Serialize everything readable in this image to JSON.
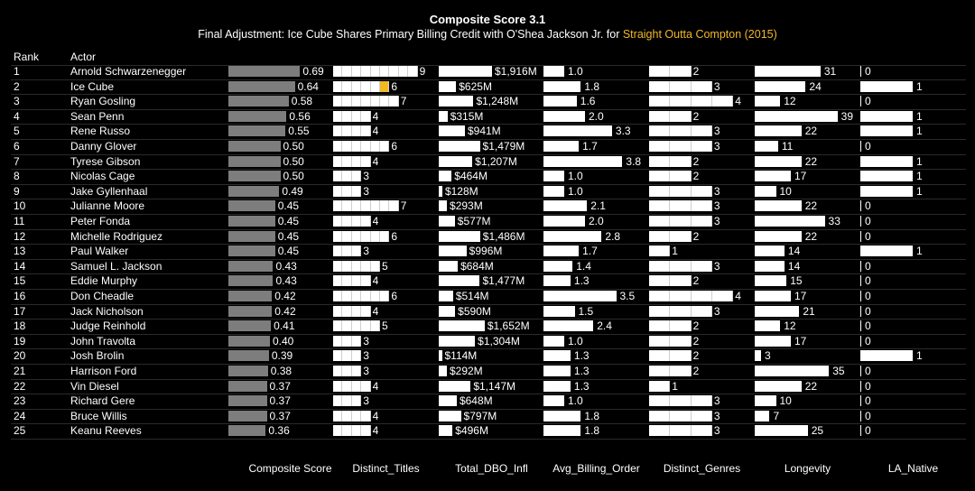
{
  "title": "Composite Score 3.1",
  "subtitle_prefix": "Final Adjustment: Ice Cube Shares Primary Billing Credit with O'Shea Jackson Jr. for ",
  "subtitle_highlight": "Straight Outta Compton (2015)",
  "colors": {
    "highlight": "#f2b826",
    "composite": "#7d7d7d",
    "bar": "#ffffff",
    "background": "#000000"
  },
  "chart_data": {
    "type": "table",
    "headers": {
      "rank": "Rank",
      "actor": "Actor"
    },
    "columns": [
      "Composite Score",
      "Distinct_Titles",
      "Total_DBO_Infl",
      "Avg_Billing_Order",
      "Distinct_Genres",
      "Longevity",
      "LA_Native"
    ],
    "highlight": {
      "actor": "Ice Cube",
      "column": "Distinct_Titles",
      "segment": 6
    },
    "rows": [
      {
        "rank": "1",
        "actor": "Arnold Schwarzenegger",
        "score": 0.69,
        "titles": 9,
        "dbo": 1916,
        "billing": 1.0,
        "genres": 2,
        "longevity": 31,
        "la": 0
      },
      {
        "rank": "2",
        "actor": "Ice Cube",
        "score": 0.64,
        "titles": 6,
        "dbo": 625,
        "billing": 1.8,
        "genres": 3,
        "longevity": 24,
        "la": 1
      },
      {
        "rank": "3",
        "actor": "Ryan Gosling",
        "score": 0.58,
        "titles": 7,
        "dbo": 1248,
        "billing": 1.6,
        "genres": 4,
        "longevity": 12,
        "la": 0
      },
      {
        "rank": "4",
        "actor": "Sean Penn",
        "score": 0.56,
        "titles": 4,
        "dbo": 315,
        "billing": 2.0,
        "genres": 2,
        "longevity": 39,
        "la": 1
      },
      {
        "rank": "5",
        "actor": "Rene Russo",
        "score": 0.55,
        "titles": 4,
        "dbo": 941,
        "billing": 3.3,
        "genres": 3,
        "longevity": 22,
        "la": 1
      },
      {
        "rank": "6",
        "actor": "Danny Glover",
        "score": 0.5,
        "titles": 6,
        "dbo": 1479,
        "billing": 1.7,
        "genres": 3,
        "longevity": 11,
        "la": 0
      },
      {
        "rank": "7",
        "actor": "Tyrese Gibson",
        "score": 0.5,
        "titles": 4,
        "dbo": 1207,
        "billing": 3.8,
        "genres": 2,
        "longevity": 22,
        "la": 1
      },
      {
        "rank": "8",
        "actor": "Nicolas Cage",
        "score": 0.5,
        "titles": 3,
        "dbo": 464,
        "billing": 1.0,
        "genres": 2,
        "longevity": 17,
        "la": 1
      },
      {
        "rank": "9",
        "actor": "Jake Gyllenhaal",
        "score": 0.49,
        "titles": 3,
        "dbo": 128,
        "billing": 1.0,
        "genres": 3,
        "longevity": 10,
        "la": 1
      },
      {
        "rank": "10",
        "actor": "Julianne Moore",
        "score": 0.45,
        "titles": 7,
        "dbo": 293,
        "billing": 2.1,
        "genres": 3,
        "longevity": 22,
        "la": 0
      },
      {
        "rank": "11",
        "actor": "Peter Fonda",
        "score": 0.45,
        "titles": 4,
        "dbo": 577,
        "billing": 2.0,
        "genres": 3,
        "longevity": 33,
        "la": 0
      },
      {
        "rank": "12",
        "actor": "Michelle Rodriguez",
        "score": 0.45,
        "titles": 6,
        "dbo": 1486,
        "billing": 2.8,
        "genres": 2,
        "longevity": 22,
        "la": 0
      },
      {
        "rank": "13",
        "actor": "Paul Walker",
        "score": 0.45,
        "titles": 3,
        "dbo": 996,
        "billing": 1.7,
        "genres": 1,
        "longevity": 14,
        "la": 1
      },
      {
        "rank": "14",
        "actor": "Samuel L. Jackson",
        "score": 0.43,
        "titles": 5,
        "dbo": 684,
        "billing": 1.4,
        "genres": 3,
        "longevity": 14,
        "la": 0
      },
      {
        "rank": "15",
        "actor": "Eddie Murphy",
        "score": 0.43,
        "titles": 4,
        "dbo": 1477,
        "billing": 1.3,
        "genres": 2,
        "longevity": 15,
        "la": 0
      },
      {
        "rank": "16",
        "actor": "Don Cheadle",
        "score": 0.42,
        "titles": 6,
        "dbo": 514,
        "billing": 3.5,
        "genres": 4,
        "longevity": 17,
        "la": 0
      },
      {
        "rank": "17",
        "actor": "Jack Nicholson",
        "score": 0.42,
        "titles": 4,
        "dbo": 590,
        "billing": 1.5,
        "genres": 3,
        "longevity": 21,
        "la": 0
      },
      {
        "rank": "18",
        "actor": "Judge Reinhold",
        "score": 0.41,
        "titles": 5,
        "dbo": 1652,
        "billing": 2.4,
        "genres": 2,
        "longevity": 12,
        "la": 0
      },
      {
        "rank": "19",
        "actor": "John Travolta",
        "score": 0.4,
        "titles": 3,
        "dbo": 1304,
        "billing": 1.0,
        "genres": 2,
        "longevity": 17,
        "la": 0
      },
      {
        "rank": "20",
        "actor": "Josh Brolin",
        "score": 0.39,
        "titles": 3,
        "dbo": 114,
        "billing": 1.3,
        "genres": 2,
        "longevity": 3,
        "la": 1
      },
      {
        "rank": "21",
        "actor": "Harrison Ford",
        "score": 0.38,
        "titles": 3,
        "dbo": 292,
        "billing": 1.3,
        "genres": 2,
        "longevity": 35,
        "la": 0
      },
      {
        "rank": "22",
        "actor": "Vin Diesel",
        "score": 0.37,
        "titles": 4,
        "dbo": 1147,
        "billing": 1.3,
        "genres": 1,
        "longevity": 22,
        "la": 0
      },
      {
        "rank": "23",
        "actor": "Richard Gere",
        "score": 0.37,
        "titles": 3,
        "dbo": 648,
        "billing": 1.0,
        "genres": 3,
        "longevity": 10,
        "la": 0
      },
      {
        "rank": "24",
        "actor": "Bruce Willis",
        "score": 0.37,
        "titles": 4,
        "dbo": 797,
        "billing": 1.8,
        "genres": 3,
        "longevity": 7,
        "la": 0
      },
      {
        "rank": "25",
        "actor": "Keanu Reeves",
        "score": 0.36,
        "titles": 4,
        "dbo": 496,
        "billing": 1.8,
        "genres": 3,
        "longevity": 25,
        "la": 0
      }
    ]
  }
}
